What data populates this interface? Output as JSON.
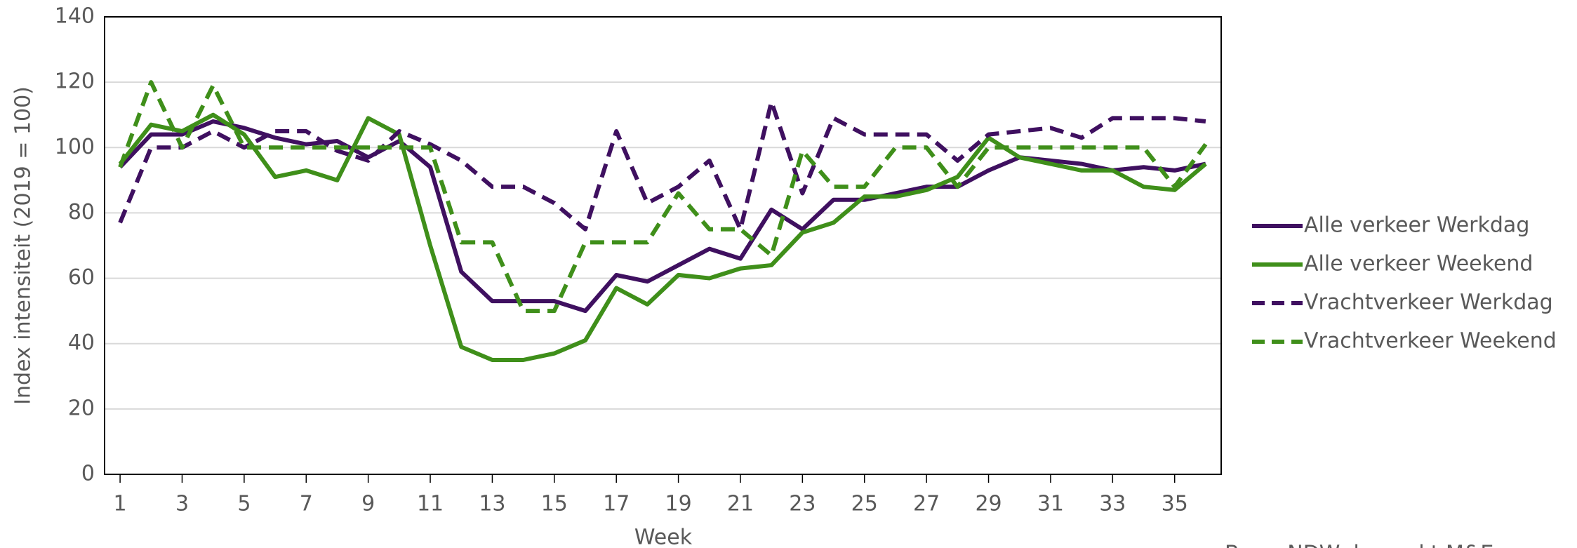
{
  "chart_data": {
    "type": "line",
    "y_label": "Index intensiteit (2019 = 100)",
    "x_label": "Week",
    "source": "Bron: NDW, bewerkt M&E",
    "x": [
      1,
      2,
      3,
      4,
      5,
      6,
      7,
      8,
      9,
      10,
      11,
      12,
      13,
      14,
      15,
      16,
      17,
      18,
      19,
      20,
      21,
      22,
      23,
      24,
      25,
      26,
      27,
      28,
      29,
      30,
      31,
      32,
      33,
      34,
      35,
      36
    ],
    "xlim": [
      0.5,
      36.5
    ],
    "xticks": [
      1,
      3,
      5,
      7,
      9,
      11,
      13,
      15,
      17,
      19,
      21,
      23,
      25,
      27,
      29,
      31,
      33,
      35
    ],
    "ylim": [
      0,
      140
    ],
    "yticks": [
      0,
      20,
      40,
      60,
      80,
      100,
      120,
      140
    ],
    "grid": true,
    "legend": "right",
    "series": [
      {
        "name": "Alle verkeer Werkdag",
        "color": "#3f1060",
        "dash": false,
        "values": [
          94,
          104,
          104,
          108,
          106,
          103,
          101,
          102,
          97,
          102,
          94,
          62,
          53,
          53,
          53,
          50,
          61,
          59,
          64,
          69,
          66,
          81,
          75,
          84,
          84,
          86,
          88,
          88,
          93,
          97,
          96,
          95,
          93,
          94,
          93,
          95
        ]
      },
      {
        "name": "Alle verkeer Weekend",
        "color": "#3f8f1a",
        "dash": false,
        "values": [
          95,
          107,
          105,
          110,
          104,
          91,
          93,
          90,
          109,
          104,
          70,
          39,
          35,
          35,
          37,
          41,
          57,
          52,
          61,
          60,
          63,
          64,
          74,
          77,
          85,
          85,
          87,
          91,
          103,
          97,
          95,
          93,
          93,
          88,
          87,
          95
        ]
      },
      {
        "name": "Vrachtverkeer Werkdag",
        "color": "#3f1060",
        "dash": true,
        "values": [
          77,
          100,
          100,
          105,
          100,
          105,
          105,
          99,
          96,
          105,
          101,
          96,
          88,
          88,
          83,
          75,
          105,
          83,
          88,
          96,
          75,
          114,
          86,
          109,
          104,
          104,
          104,
          96,
          104,
          105,
          106,
          103,
          109,
          109,
          109,
          108
        ]
      },
      {
        "name": "Vrachtverkeer Weekend",
        "color": "#3f8f1a",
        "dash": true,
        "values": [
          94,
          120,
          100,
          119,
          100,
          100,
          100,
          100,
          100,
          100,
          100,
          71,
          71,
          50,
          50,
          71,
          71,
          71,
          86,
          75,
          75,
          67,
          99,
          88,
          88,
          100,
          100,
          88,
          100,
          100,
          100,
          100,
          100,
          100,
          88,
          101
        ]
      }
    ]
  }
}
